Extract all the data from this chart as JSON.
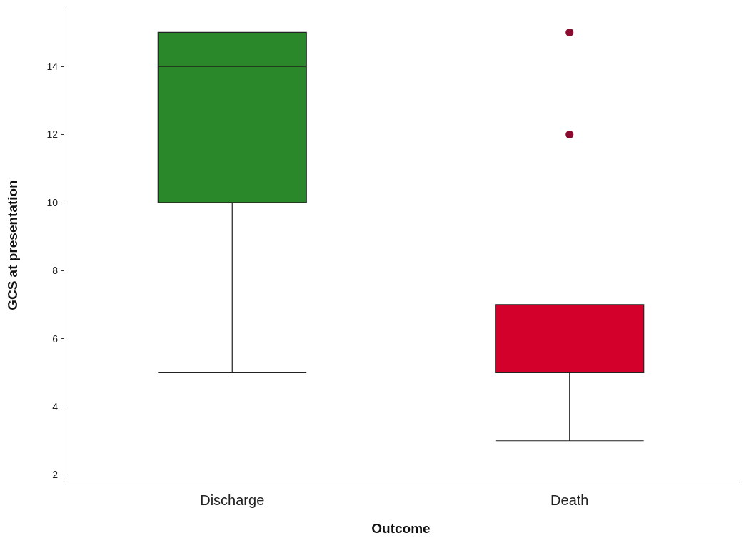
{
  "chart_data": {
    "type": "box",
    "xlabel": "Outcome",
    "ylabel": "GCS at presentation",
    "categories": [
      "Discharge",
      "Death"
    ],
    "ylim": [
      1.8,
      15.7
    ],
    "yticks": [
      2,
      4,
      6,
      8,
      10,
      12,
      14
    ],
    "grid": false,
    "series": [
      {
        "colors": [
          "#2a882a",
          "#d4002c"
        ],
        "boxes": [
          {
            "low": 5,
            "q1": 10,
            "median": 14,
            "q3": 15,
            "high": 15
          },
          {
            "low": 3,
            "q1": 5,
            "median": 5,
            "q3": 7,
            "high": 7
          }
        ]
      },
      {
        "type": "scatter",
        "x": [
          "Death",
          "Death"
        ],
        "values": [
          15,
          12
        ],
        "color": "#8c0a30",
        "marker": "circle"
      }
    ]
  }
}
